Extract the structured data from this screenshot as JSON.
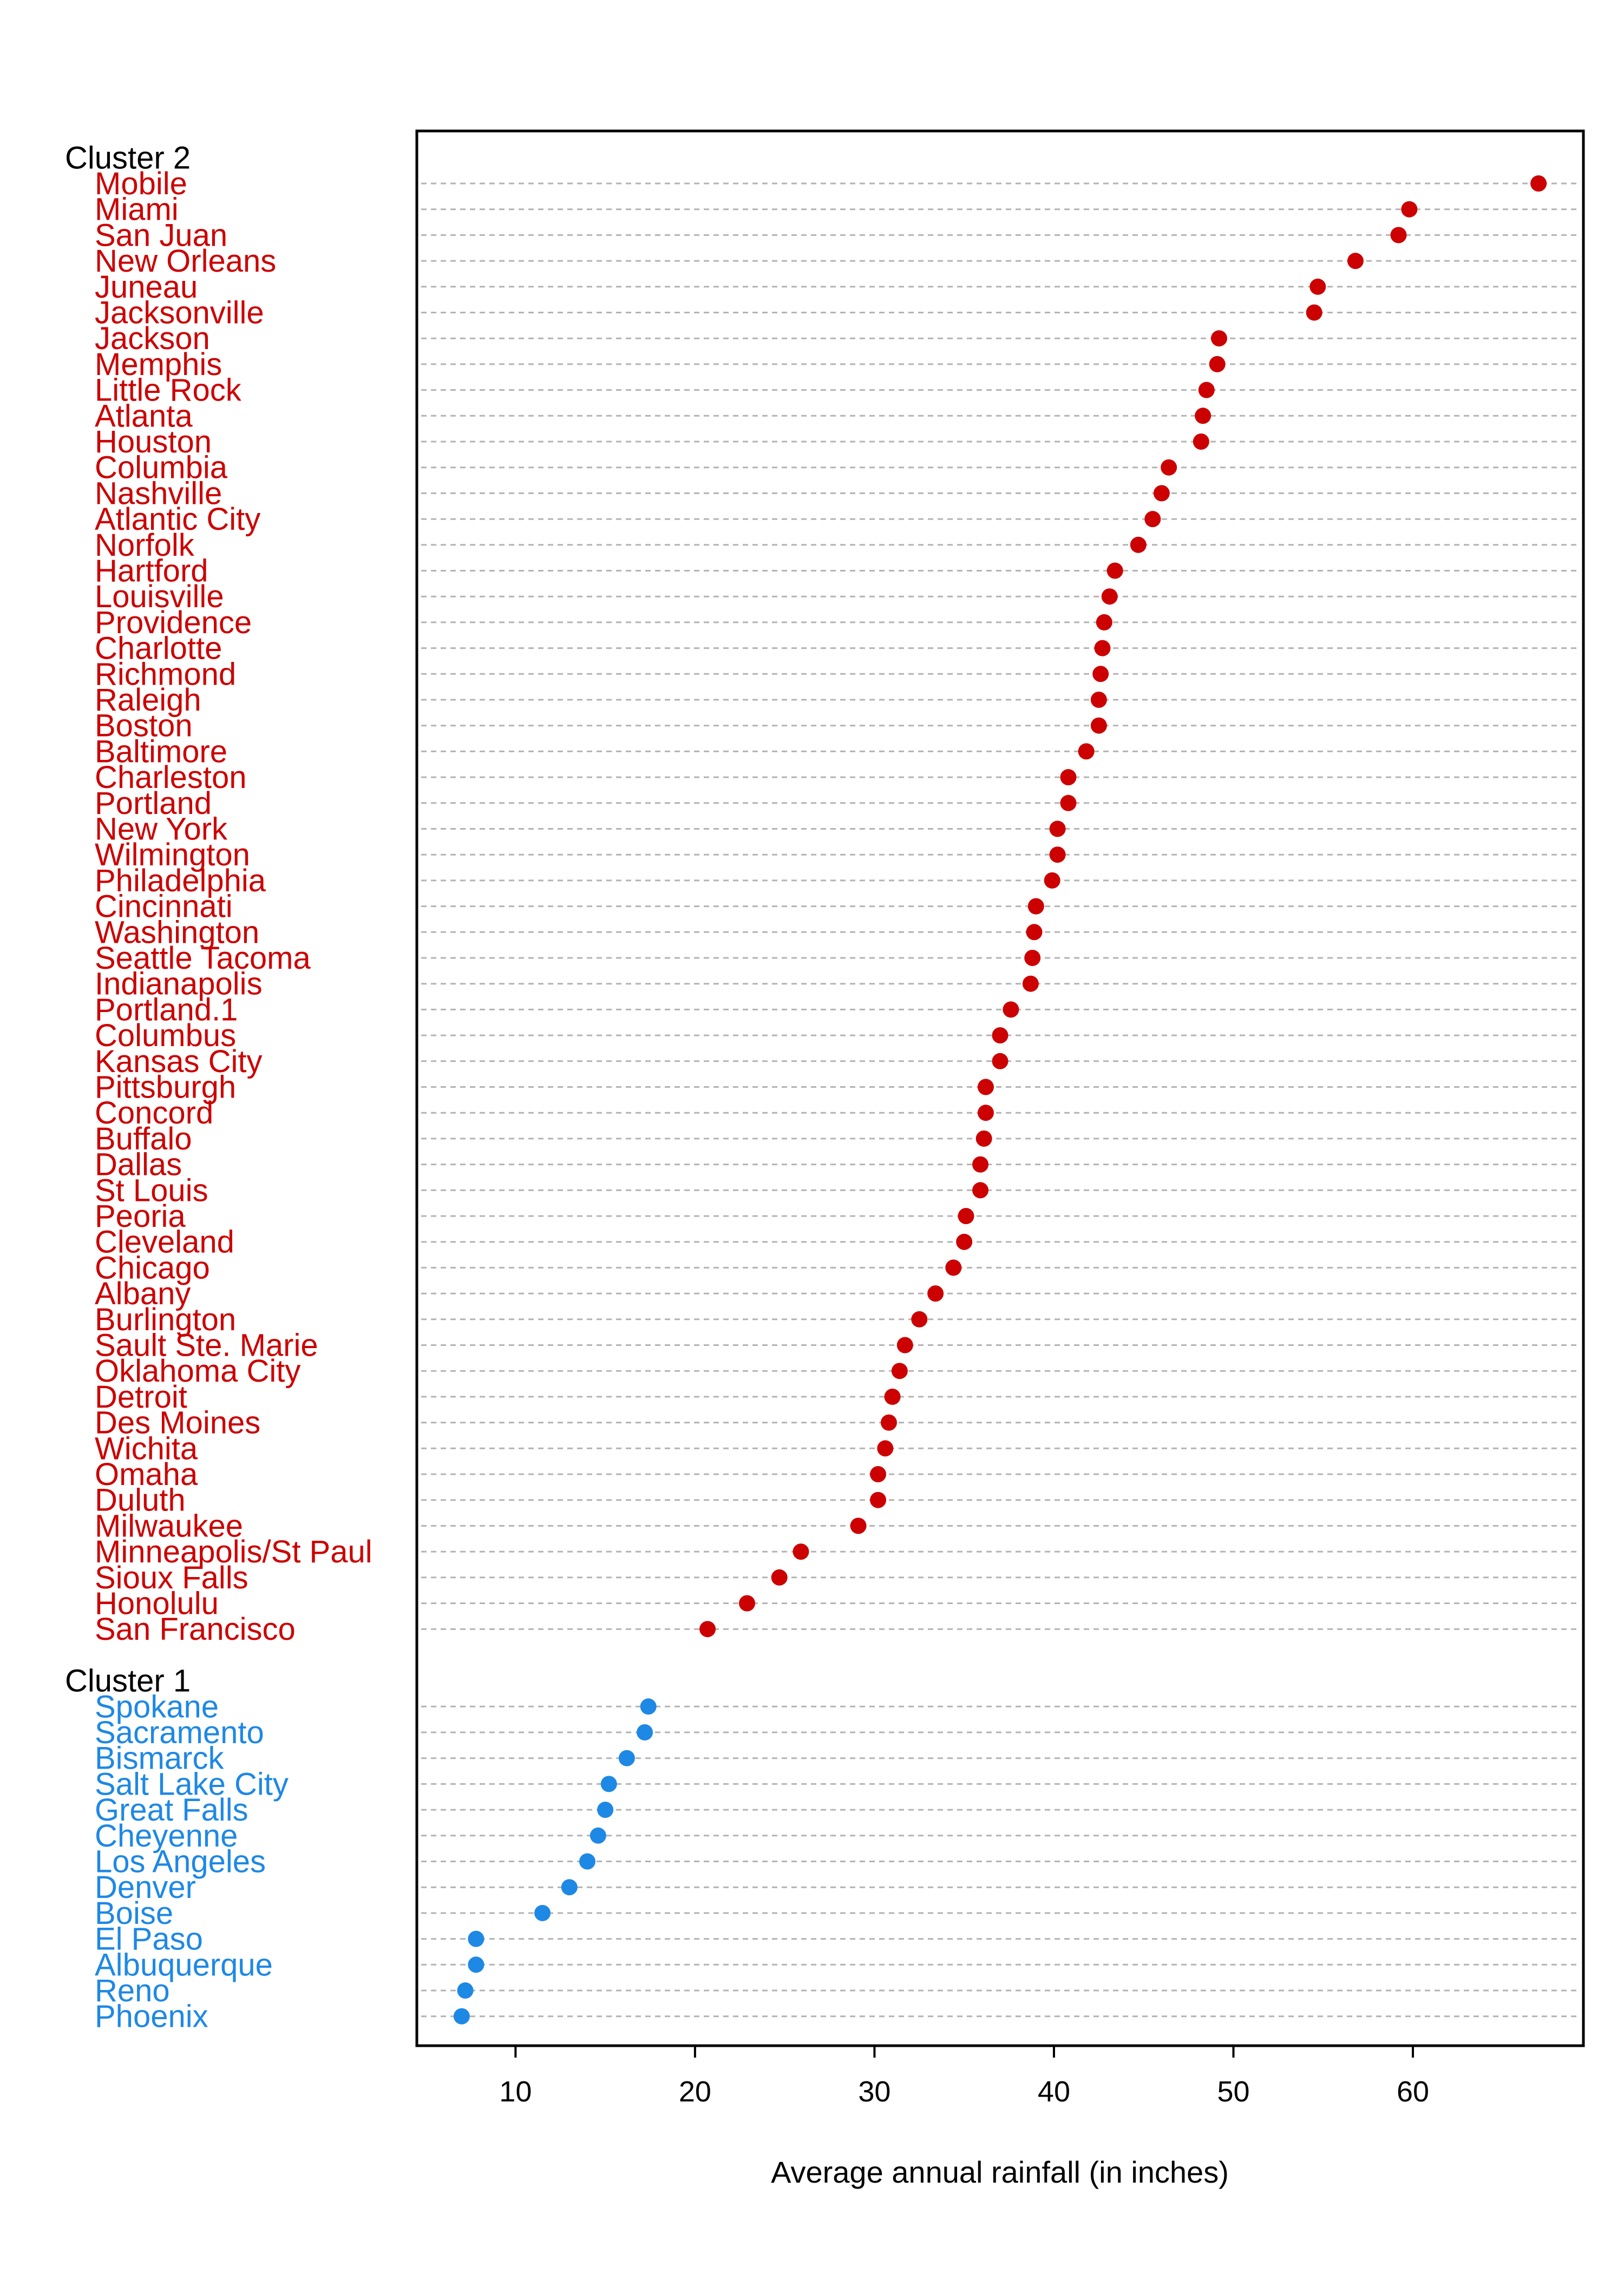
{
  "chart_data": {
    "type": "dotplot",
    "xlabel": "Average annual rainfall (in inches)",
    "xlim": [
      4.5,
      69.5
    ],
    "xticks": [
      10,
      20,
      30,
      40,
      50,
      60
    ],
    "xtick_labels": [
      "10",
      "20",
      "30",
      "40",
      "50",
      "60"
    ],
    "gridlines": "dashed horizontal per row",
    "colors": {
      "Cluster 2": "#cc0000",
      "Cluster 1": "#1e88e5",
      "grid": "#b3b3b3",
      "frame": "#000000"
    },
    "groups": [
      {
        "name": "Cluster 2",
        "color": "#cc0000",
        "items": [
          {
            "label": "Mobile",
            "value": 67.0
          },
          {
            "label": "Miami",
            "value": 59.8
          },
          {
            "label": "San Juan",
            "value": 59.2
          },
          {
            "label": "New Orleans",
            "value": 56.8
          },
          {
            "label": "Juneau",
            "value": 54.7
          },
          {
            "label": "Jacksonville",
            "value": 54.5
          },
          {
            "label": "Jackson",
            "value": 49.2
          },
          {
            "label": "Memphis",
            "value": 49.1
          },
          {
            "label": "Little Rock",
            "value": 48.5
          },
          {
            "label": "Atlanta",
            "value": 48.3
          },
          {
            "label": "Houston",
            "value": 48.2
          },
          {
            "label": "Columbia",
            "value": 46.4
          },
          {
            "label": "Nashville",
            "value": 46.0
          },
          {
            "label": "Atlantic City",
            "value": 45.5
          },
          {
            "label": "Norfolk",
            "value": 44.7
          },
          {
            "label": "Hartford",
            "value": 43.4
          },
          {
            "label": "Louisville",
            "value": 43.1
          },
          {
            "label": "Providence",
            "value": 42.8
          },
          {
            "label": "Charlotte",
            "value": 42.7
          },
          {
            "label": "Richmond",
            "value": 42.6
          },
          {
            "label": "Raleigh",
            "value": 42.5
          },
          {
            "label": "Boston",
            "value": 42.5
          },
          {
            "label": "Baltimore",
            "value": 41.8
          },
          {
            "label": "Charleston",
            "value": 40.8
          },
          {
            "label": "Portland",
            "value": 40.8
          },
          {
            "label": "New York",
            "value": 40.2
          },
          {
            "label": "Wilmington",
            "value": 40.2
          },
          {
            "label": "Philadelphia",
            "value": 39.9
          },
          {
            "label": "Cincinnati",
            "value": 39.0
          },
          {
            "label": "Washington",
            "value": 38.9
          },
          {
            "label": "Seattle Tacoma",
            "value": 38.8
          },
          {
            "label": "Indianapolis",
            "value": 38.7
          },
          {
            "label": "Portland.1",
            "value": 37.6
          },
          {
            "label": "Columbus",
            "value": 37.0
          },
          {
            "label": "Kansas City",
            "value": 37.0
          },
          {
            "label": "Pittsburgh",
            "value": 36.2
          },
          {
            "label": "Concord",
            "value": 36.2
          },
          {
            "label": "Buffalo",
            "value": 36.1
          },
          {
            "label": "Dallas",
            "value": 35.9
          },
          {
            "label": "St Louis",
            "value": 35.9
          },
          {
            "label": "Peoria",
            "value": 35.1
          },
          {
            "label": "Cleveland",
            "value": 35.0
          },
          {
            "label": "Chicago",
            "value": 34.4
          },
          {
            "label": "Albany",
            "value": 33.4
          },
          {
            "label": "Burlington",
            "value": 32.5
          },
          {
            "label": "Sault Ste. Marie",
            "value": 31.7
          },
          {
            "label": "Oklahoma City",
            "value": 31.4
          },
          {
            "label": "Detroit",
            "value": 31.0
          },
          {
            "label": "Des Moines",
            "value": 30.8
          },
          {
            "label": "Wichita",
            "value": 30.6
          },
          {
            "label": "Omaha",
            "value": 30.2
          },
          {
            "label": "Duluth",
            "value": 30.2
          },
          {
            "label": "Milwaukee",
            "value": 29.1
          },
          {
            "label": "Minneapolis/St Paul",
            "value": 25.9
          },
          {
            "label": "Sioux Falls",
            "value": 24.7
          },
          {
            "label": "Honolulu",
            "value": 22.9
          },
          {
            "label": "San Francisco",
            "value": 20.7
          }
        ]
      },
      {
        "name": "Cluster 1",
        "color": "#1e88e5",
        "items": [
          {
            "label": "Spokane",
            "value": 17.4
          },
          {
            "label": "Sacramento",
            "value": 17.2
          },
          {
            "label": "Bismarck",
            "value": 16.2
          },
          {
            "label": "Salt Lake City",
            "value": 15.2
          },
          {
            "label": "Great Falls",
            "value": 15.0
          },
          {
            "label": "Cheyenne",
            "value": 14.6
          },
          {
            "label": "Los Angeles",
            "value": 14.0
          },
          {
            "label": "Denver",
            "value": 13.0
          },
          {
            "label": "Boise",
            "value": 11.5
          },
          {
            "label": "El Paso",
            "value": 7.8
          },
          {
            "label": "Albuquerque",
            "value": 7.8
          },
          {
            "label": "Reno",
            "value": 7.2
          },
          {
            "label": "Phoenix",
            "value": 7.0
          }
        ]
      }
    ]
  }
}
